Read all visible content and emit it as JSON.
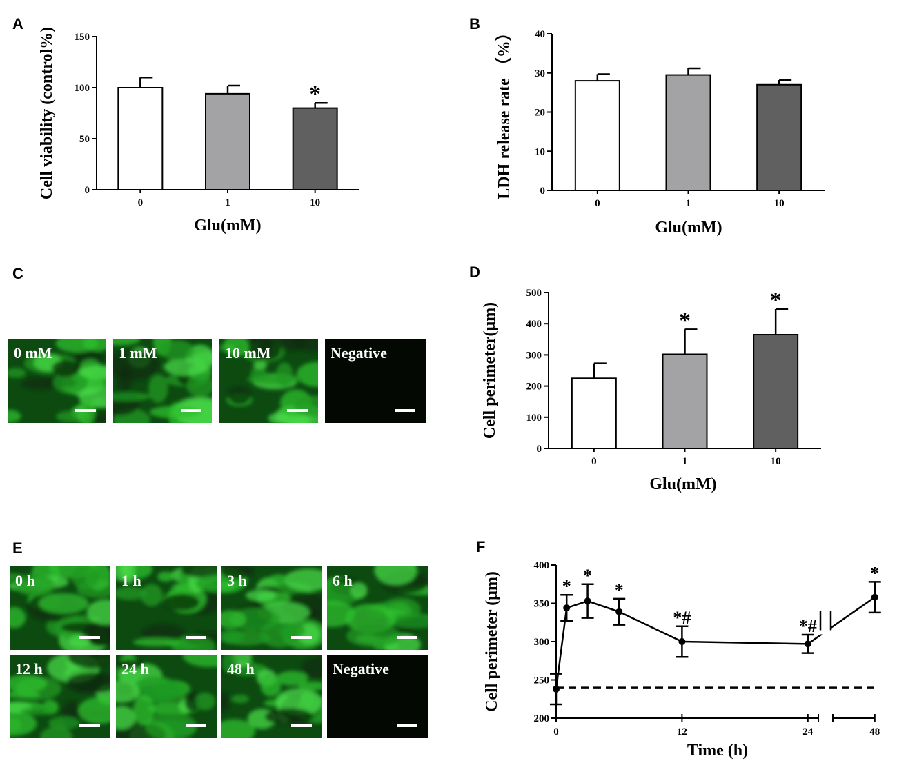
{
  "chart_data": [
    {
      "type": "bar",
      "letter": "A",
      "categories": [
        "0",
        "1",
        "10"
      ],
      "values": [
        100,
        94,
        80
      ],
      "errors": [
        10,
        8,
        5
      ],
      "colors": [
        "#ffffff",
        "#a3a3a6",
        "#606060"
      ],
      "ylim": [
        0,
        150
      ],
      "yticks": [
        0,
        50,
        100,
        150
      ],
      "ylabel": "Cell viability (control%)",
      "xlabel": "Glu(mM)",
      "annotations": [
        null,
        null,
        "*"
      ]
    },
    {
      "type": "bar",
      "letter": "B",
      "categories": [
        "0",
        "1",
        "10"
      ],
      "values": [
        28,
        29.5,
        27
      ],
      "errors": [
        1.7,
        1.7,
        1.2
      ],
      "colors": [
        "#ffffff",
        "#a3a3a6",
        "#606060"
      ],
      "ylim": [
        0,
        40
      ],
      "yticks": [
        0,
        10,
        20,
        30,
        40
      ],
      "ylabel": "LDH release rate （%）",
      "xlabel": "Glu(mM)",
      "annotations": [
        null,
        null,
        null
      ]
    },
    {
      "type": "bar",
      "letter": "D",
      "categories": [
        "0",
        "1",
        "10"
      ],
      "values": [
        225,
        302,
        365
      ],
      "errors": [
        48,
        80,
        82
      ],
      "colors": [
        "#ffffff",
        "#a3a3a6",
        "#606060"
      ],
      "ylim": [
        0,
        500
      ],
      "yticks": [
        0,
        100,
        200,
        300,
        400,
        500
      ],
      "ylabel": "Cell perimeter(μm)",
      "xlabel": "Glu(mM)",
      "annotations": [
        null,
        "*",
        "*"
      ]
    },
    {
      "type": "line",
      "letter": "F",
      "x": [
        0,
        1,
        3,
        6,
        12,
        24,
        48
      ],
      "values": [
        238,
        344,
        353,
        339,
        300,
        297,
        358
      ],
      "errors": [
        20,
        17,
        22,
        17,
        20,
        12,
        20
      ],
      "color": "#000000",
      "xlim": [
        0,
        48
      ],
      "xbreak": [
        25,
        44
      ],
      "xticks": [
        0,
        12,
        24,
        48
      ],
      "ylim": [
        200,
        400
      ],
      "yticks": [
        200,
        250,
        300,
        350,
        400
      ],
      "reference_line": 240,
      "ylabel": "Cell perimeter (μm)",
      "xlabel": "Time (h)",
      "annotations": [
        null,
        "*",
        "*",
        "*",
        "*#",
        "*#",
        "*"
      ]
    }
  ],
  "images": [
    {
      "letter": "C",
      "labels": [
        "0 mM",
        "1 mM",
        "10 mM",
        "Negative"
      ]
    },
    {
      "letter": "E",
      "labels": [
        "0 h",
        "1 h",
        "3 h",
        "6 h",
        "12 h",
        "24 h",
        "48 h",
        "Negative"
      ]
    }
  ]
}
